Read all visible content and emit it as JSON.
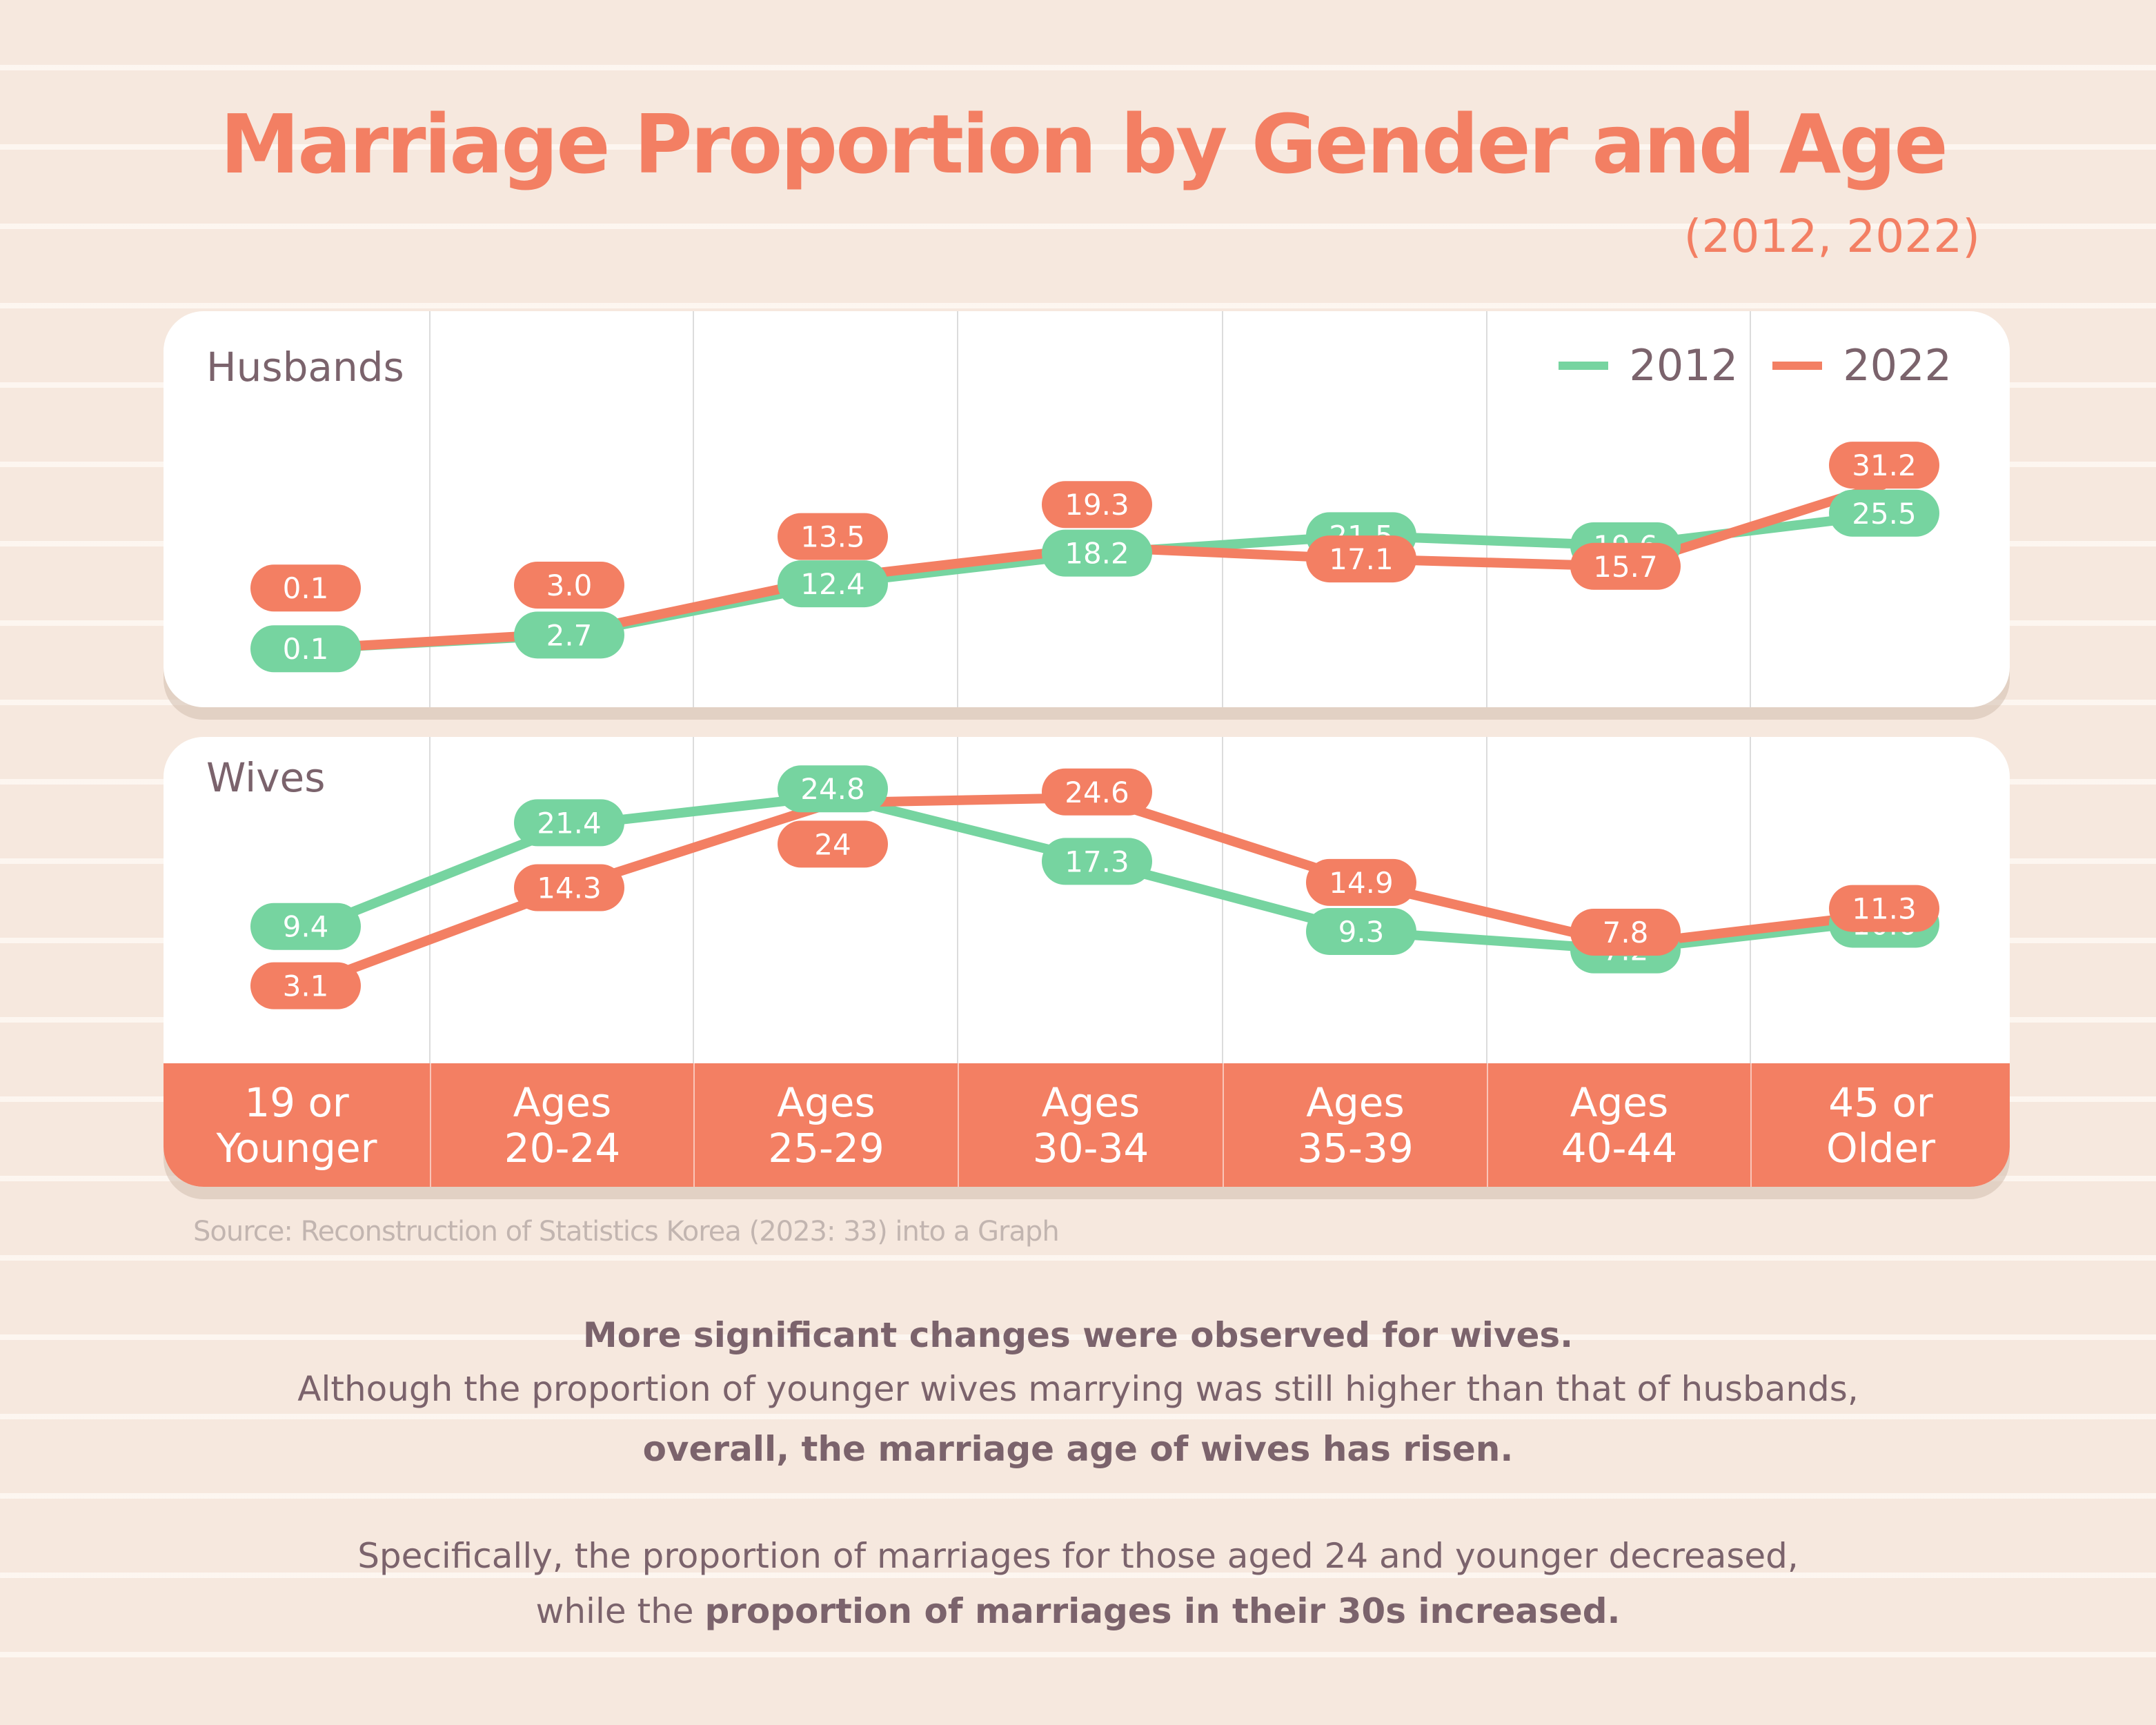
{
  "header": {
    "title": "Marriage Proportion by Gender and Age",
    "subtitle": "(2012, 2022)"
  },
  "colors": {
    "series_2012": "#76d4a0",
    "series_2022": "#f37f63",
    "text": "#7b636c",
    "background": "#f6e8de"
  },
  "chart_data": [
    {
      "type": "line",
      "title": "Husbands",
      "categories": [
        "19 or\nYounger",
        "Ages\n20-24",
        "Ages\n25-29",
        "Ages\n30-34",
        "Ages\n35-39",
        "Ages\n40-44",
        "45 or\nOlder"
      ],
      "series": [
        {
          "name": "2012",
          "values": [
            0.1,
            2.7,
            12.4,
            18.2,
            21.5,
            19.6,
            25.5
          ],
          "labels": [
            "0.1",
            "2.7",
            "12.4",
            "18.2",
            "21.5",
            "19.6",
            "25.5"
          ]
        },
        {
          "name": "2022",
          "values": [
            0.1,
            3.0,
            13.5,
            19.3,
            17.1,
            15.7,
            31.2
          ],
          "labels": [
            "0.1",
            "3.0",
            "13.5",
            "19.3",
            "17.1",
            "15.7",
            "31.2"
          ]
        }
      ],
      "xlabel": "",
      "ylabel": "",
      "legend": "top-right",
      "grid": "vertical category dividers",
      "ylim": [
        0,
        32
      ]
    },
    {
      "type": "line",
      "title": "Wives",
      "categories": [
        "19 or\nYounger",
        "Ages\n20-24",
        "Ages\n25-29",
        "Ages\n30-34",
        "Ages\n35-39",
        "Ages\n40-44",
        "45 or\nOlder"
      ],
      "series": [
        {
          "name": "2012",
          "values": [
            9.4,
            21.4,
            24.8,
            17.3,
            9.3,
            7.2,
            10.6
          ],
          "labels": [
            "9.4",
            "21.4",
            "24.8",
            "17.3",
            "9.3",
            "7.2",
            "10.6"
          ]
        },
        {
          "name": "2022",
          "values": [
            3.1,
            14.3,
            24.0,
            24.6,
            14.9,
            7.8,
            11.3
          ],
          "labels": [
            "3.1",
            "14.3",
            "24",
            "24.6",
            "14.9",
            "7.8",
            "11.3"
          ]
        }
      ],
      "xlabel": "",
      "ylabel": "",
      "grid": "vertical category dividers",
      "ylim": [
        0,
        26
      ]
    }
  ],
  "legend": [
    {
      "label": "2012"
    },
    {
      "label": "2022"
    }
  ],
  "axis": {
    "categories": [
      "19 or\nYounger",
      "Ages\n20-24",
      "Ages\n25-29",
      "Ages\n30-34",
      "Ages\n35-39",
      "Ages\n40-44",
      "45 or\nOlder"
    ]
  },
  "source": "Source: Reconstruction of Statistics Korea (2023: 33) into a Graph",
  "description": {
    "line1": "More significant changes were observed for wives.",
    "line2": "Although the proportion of younger wives marrying was still higher than that of husbands,",
    "line3": "overall, the marriage age of wives has risen.",
    "line4": "Specifically, the proportion of marriages for those aged 24 and younger decreased,",
    "line5_plain": "while the ",
    "line5_bold": "proportion of marriages in their 30s increased."
  }
}
